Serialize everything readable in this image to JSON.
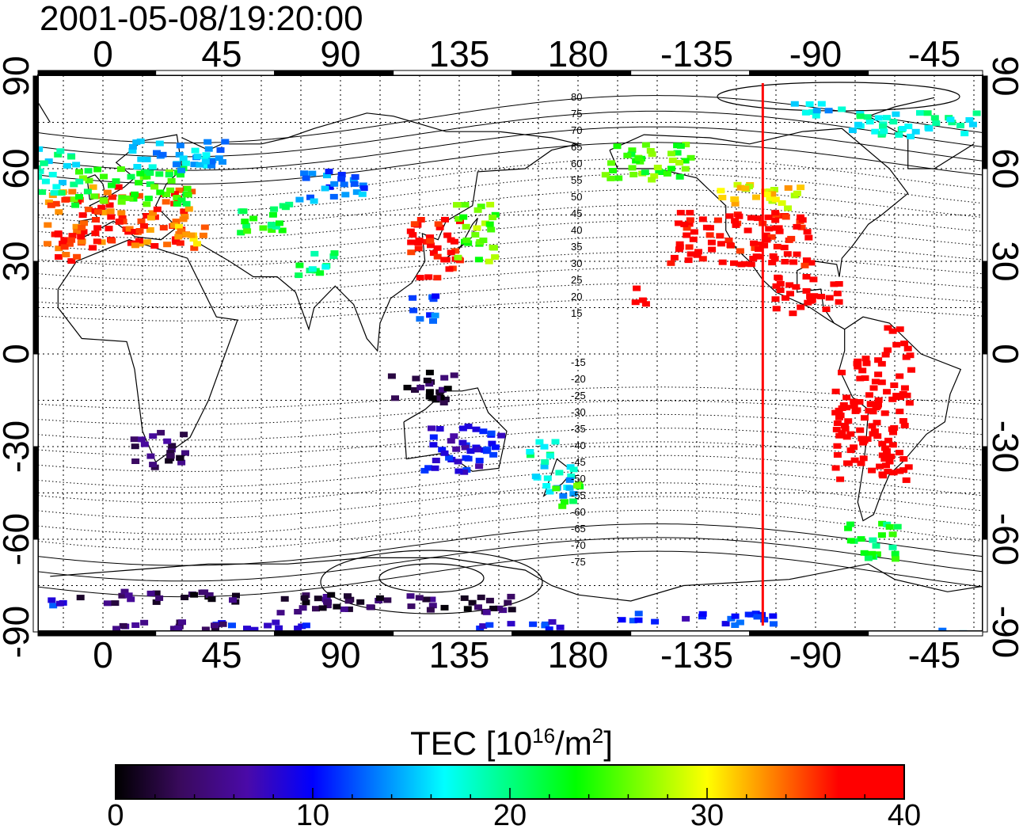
{
  "title": "2001-05-08/19:20:00",
  "colorbar": {
    "label_prefix": "TEC  [10",
    "label_sup1": "16",
    "label_mid": "/m",
    "label_sup2": "2",
    "label_suffix": "]",
    "ticks": [
      "0",
      "10",
      "20",
      "30",
      "40"
    ],
    "range": [
      0,
      40
    ],
    "colors": [
      "#000000",
      "#3a0a5e",
      "#4a0aa8",
      "#0000ff",
      "#0080ff",
      "#00ffff",
      "#00ff80",
      "#00ff00",
      "#80ff00",
      "#ffff00",
      "#ff8000",
      "#ff0000",
      "#ff0000"
    ]
  },
  "axes": {
    "lon_ticks_top": [
      "0",
      "45",
      "90",
      "135",
      "180",
      "-135",
      "-90",
      "-45"
    ],
    "lon_ticks_bottom": [
      "0",
      "45",
      "90",
      "135",
      "180",
      "-135",
      "-90",
      "-45"
    ],
    "lat_ticks_left": [
      "90",
      "60",
      "30",
      "0",
      "-30",
      "-60",
      "-90"
    ],
    "lat_ticks_right": [
      "90",
      "60",
      "30",
      "0",
      "-30",
      "-60",
      "-90"
    ],
    "lon_range": [
      -25,
      335
    ],
    "lat_range": [
      -90,
      90
    ]
  },
  "magnetic_latitude_labels": [
    "80",
    "75",
    "70",
    "65",
    "60",
    "55",
    "50",
    "45",
    "40",
    "35",
    "30",
    "25",
    "20",
    "15",
    "-15",
    "-20",
    "-25",
    "-30",
    "-35",
    "-40",
    "-45",
    "-50",
    "-55",
    "-60",
    "-65",
    "-70",
    "-75"
  ],
  "terminator_longitude": -110,
  "tec_patches": [
    {
      "lon": 5,
      "lat": 45,
      "w": 55,
      "h": 20,
      "tec": 35
    },
    {
      "lon": 10,
      "lat": 55,
      "w": 45,
      "h": 12,
      "tec": 24
    },
    {
      "lon": 25,
      "lat": 65,
      "w": 40,
      "h": 10,
      "tec": 15
    },
    {
      "lon": 30,
      "lat": 40,
      "w": 15,
      "h": 10,
      "tec": 33
    },
    {
      "lon": 60,
      "lat": 45,
      "w": 20,
      "h": 10,
      "tec": 22
    },
    {
      "lon": 85,
      "lat": 55,
      "w": 25,
      "h": 10,
      "tec": 13
    },
    {
      "lon": 80,
      "lat": 30,
      "w": 15,
      "h": 8,
      "tec": 20
    },
    {
      "lon": 125,
      "lat": 35,
      "w": 20,
      "h": 20,
      "tec": 38
    },
    {
      "lon": 140,
      "lat": 40,
      "w": 15,
      "h": 20,
      "tec": 26
    },
    {
      "lon": 120,
      "lat": 15,
      "w": 10,
      "h": 10,
      "tec": 12
    },
    {
      "lon": 20,
      "lat": -30,
      "w": 20,
      "h": 12,
      "tec": 4
    },
    {
      "lon": 135,
      "lat": -30,
      "w": 30,
      "h": 15,
      "tec": 9
    },
    {
      "lon": 120,
      "lat": -10,
      "w": 25,
      "h": 10,
      "tec": 2
    },
    {
      "lon": 170,
      "lat": -40,
      "w": 15,
      "h": 12,
      "tec": 16
    },
    {
      "lon": 165,
      "lat": -30,
      "w": 10,
      "h": 8,
      "tec": 18
    },
    {
      "lon": 175,
      "lat": -45,
      "w": 10,
      "h": 8,
      "tec": 24
    },
    {
      "lon": 110,
      "lat": -80,
      "w": 90,
      "h": 6,
      "tec": 3
    },
    {
      "lon": 20,
      "lat": -78,
      "w": 60,
      "h": 4,
      "tec": 3
    },
    {
      "lon": 60,
      "lat": -87,
      "w": 40,
      "h": 3,
      "tec": 9
    },
    {
      "lon": 20,
      "lat": -87,
      "w": 50,
      "h": 3,
      "tec": 4
    },
    {
      "lon": 155,
      "lat": -87,
      "w": 35,
      "h": 3,
      "tec": 10
    },
    {
      "lon": 225,
      "lat": -85,
      "w": 60,
      "h": 4,
      "tec": 10
    },
    {
      "lon": 205,
      "lat": 63,
      "w": 35,
      "h": 12,
      "tec": 25
    },
    {
      "lon": 240,
      "lat": 38,
      "w": 55,
      "h": 18,
      "tec": 38
    },
    {
      "lon": 250,
      "lat": 52,
      "w": 35,
      "h": 8,
      "tec": 30
    },
    {
      "lon": 265,
      "lat": 20,
      "w": 25,
      "h": 12,
      "tec": 40
    },
    {
      "lon": 202,
      "lat": 20,
      "w": 6,
      "h": 8,
      "tec": 40
    },
    {
      "lon": 290,
      "lat": -20,
      "w": 30,
      "h": 40,
      "tec": 40
    },
    {
      "lon": 290,
      "lat": -60,
      "w": 20,
      "h": 12,
      "tec": 22
    },
    {
      "lon": 300,
      "lat": 5,
      "w": 10,
      "h": 10,
      "tec": 40
    },
    {
      "lon": 305,
      "lat": 75,
      "w": 50,
      "h": 8,
      "tec": 18
    },
    {
      "lon": 270,
      "lat": 80,
      "w": 25,
      "h": 4,
      "tec": 16
    },
    {
      "lon": 320,
      "lat": -90,
      "w": 15,
      "h": 3,
      "tec": 11
    },
    {
      "lon": -20,
      "lat": 60,
      "w": 20,
      "h": 15,
      "tec": 18
    },
    {
      "lon": -15,
      "lat": 35,
      "w": 10,
      "h": 10,
      "tec": 36
    },
    {
      "lon": -20,
      "lat": -80,
      "w": 10,
      "h": 3,
      "tec": 10
    }
  ]
}
